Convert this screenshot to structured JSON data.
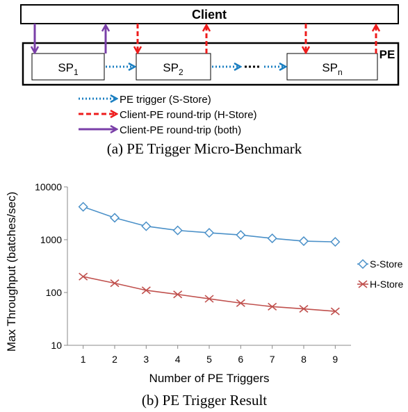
{
  "diagram": {
    "client_label": "Client",
    "pe_label": "PE",
    "sp_boxes": [
      {
        "base": "SP",
        "sub": "1"
      },
      {
        "base": "SP",
        "sub": "2"
      },
      {
        "base": "SP",
        "sub": "n"
      }
    ],
    "legend": [
      {
        "label": "PE trigger (S-Store)",
        "style": "dotted",
        "color": "#1b7fc1"
      },
      {
        "label": "Client-PE round-trip (H-Store)",
        "style": "dashed",
        "color": "#ee1c1c"
      },
      {
        "label": "Client-PE round-trip (both)",
        "style": "solid",
        "color": "#7a3fa8"
      }
    ],
    "caption": "(a) PE Trigger Micro-Benchmark"
  },
  "chart_data": {
    "type": "line",
    "x": [
      1,
      2,
      3,
      4,
      5,
      6,
      7,
      8,
      9
    ],
    "series": [
      {
        "name": "S-Store",
        "values": [
          4200,
          2600,
          1800,
          1500,
          1350,
          1230,
          1060,
          940,
          910
        ],
        "color": "#4a90c8",
        "marker": "diamond"
      },
      {
        "name": "H-Store",
        "values": [
          200,
          150,
          110,
          92,
          76,
          63,
          54,
          49,
          44
        ],
        "color": "#c0504d",
        "marker": "x"
      }
    ],
    "xlabel": "Number of PE Triggers",
    "ylabel": "Max Throughput (batches/sec)",
    "yscale": "log",
    "ylim": [
      10,
      10000
    ],
    "yticks": [
      "10",
      "100",
      "1000",
      "10000"
    ],
    "xticks": [
      "1",
      "2",
      "3",
      "4",
      "5",
      "6",
      "7",
      "8",
      "9"
    ],
    "legend_position": "right",
    "caption": "(b) PE Trigger Result"
  }
}
